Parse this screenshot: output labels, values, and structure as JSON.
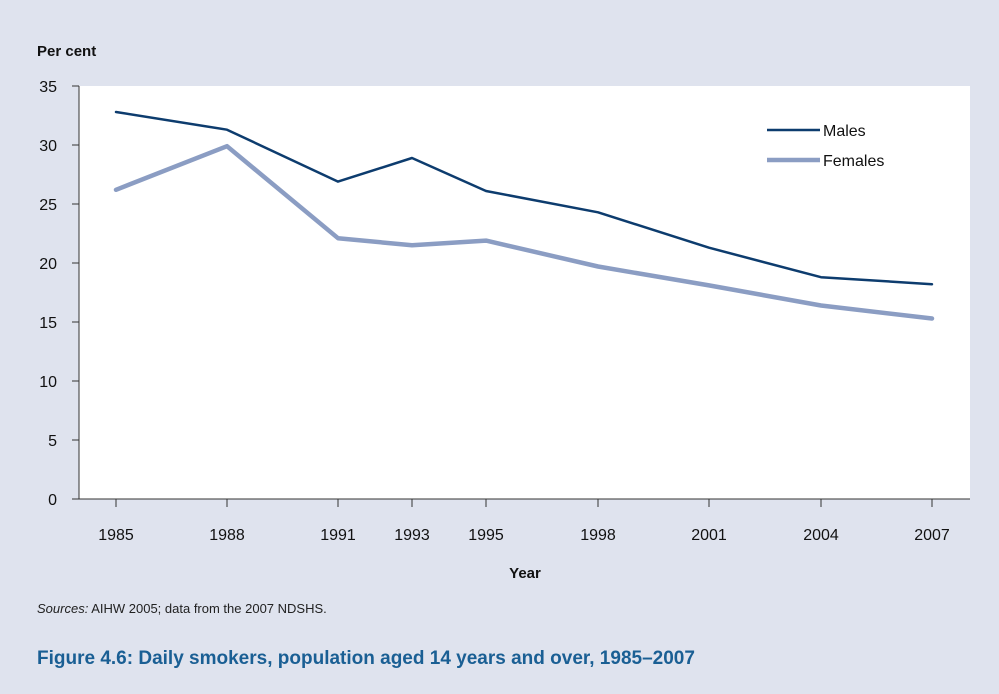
{
  "chart_data": {
    "type": "line",
    "ylabel": "Per cent",
    "xlabel": "Year",
    "ylim": [
      0,
      35
    ],
    "yticks": [
      0,
      5,
      10,
      15,
      20,
      25,
      30,
      35
    ],
    "x": [
      1985,
      1988,
      1991,
      1993,
      1995,
      1998,
      2001,
      2004,
      2007
    ],
    "legend_position": "top-right",
    "grid": false,
    "series": [
      {
        "name": "Males",
        "color": "#0d3c6e",
        "values": [
          32.8,
          31.3,
          26.9,
          28.9,
          26.1,
          24.3,
          21.3,
          18.8,
          18.2
        ]
      },
      {
        "name": "Females",
        "color": "#8b9dc3",
        "values": [
          26.2,
          29.9,
          22.1,
          21.5,
          21.9,
          19.7,
          18.1,
          16.4,
          15.3
        ]
      }
    ]
  },
  "source": {
    "prefix": "Sources:",
    "text": " AIHW 2005; data from the 2007 NDSHS."
  },
  "caption": "Figure 4.6: Daily smokers, population aged 14 years and over, 1985–2007"
}
